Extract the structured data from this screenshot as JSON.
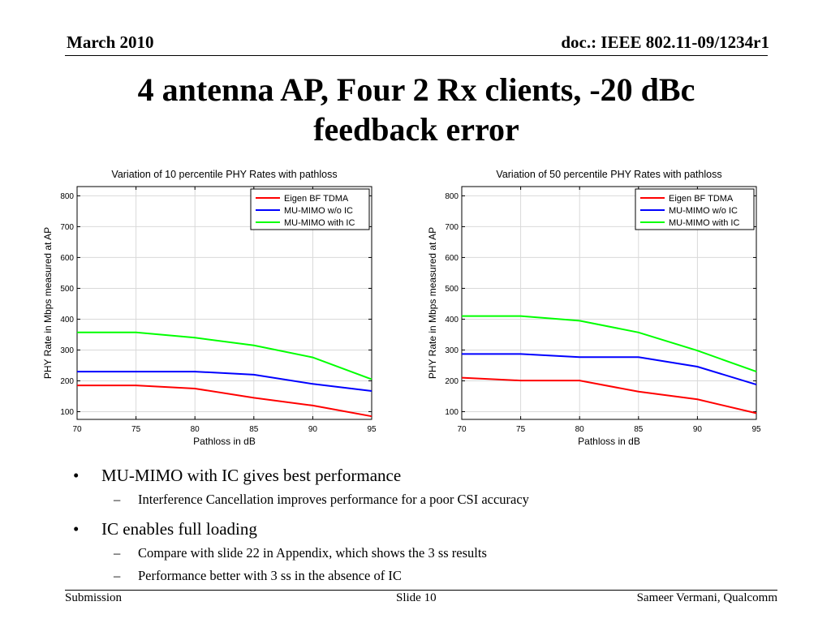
{
  "header": {
    "date": "March 2010",
    "doc_id": "doc.: IEEE 802.11-09/1234r1"
  },
  "title": {
    "line1": "4 antenna AP, Four 2 Rx clients, -20 dBc",
    "line2": "feedback error"
  },
  "colors": {
    "eigen": "#ff0000",
    "mumimo_wo_ic": "#0000ff",
    "mumimo_with_ic": "#00ff00"
  },
  "chart_data": [
    {
      "type": "line",
      "title": "Variation of 10 percentile PHY Rates with pathloss",
      "xlabel": "Pathloss in dB",
      "ylabel": "PHY Rate in Mbps measured at AP",
      "xlim": [
        70,
        95
      ],
      "ylim": [
        75,
        830
      ],
      "x": [
        70,
        75,
        80,
        85,
        90,
        95
      ],
      "x_ticks": [
        "70",
        "75",
        "80",
        "85",
        "90",
        "95"
      ],
      "y_ticks": [
        "100",
        "200",
        "300",
        "400",
        "500",
        "600",
        "700",
        "800"
      ],
      "grid": true,
      "legend_position": "top-right",
      "series": [
        {
          "name": "Eigen BF TDMA",
          "color": "#ff0000",
          "values": [
            185,
            185,
            175,
            145,
            120,
            85
          ]
        },
        {
          "name": "MU-MIMO w/o IC",
          "color": "#0000ff",
          "values": [
            230,
            230,
            230,
            220,
            190,
            167
          ]
        },
        {
          "name": "MU-MIMO with IC",
          "color": "#00ff00",
          "values": [
            357,
            357,
            340,
            315,
            276,
            205
          ]
        }
      ]
    },
    {
      "type": "line",
      "title": "Variation of 50 percentile PHY Rates with pathloss",
      "xlabel": "Pathloss in dB",
      "ylabel": "PHY Rate in Mbps measured at AP",
      "xlim": [
        70,
        95
      ],
      "ylim": [
        75,
        830
      ],
      "x": [
        70,
        75,
        80,
        85,
        90,
        95
      ],
      "x_ticks": [
        "70",
        "75",
        "80",
        "85",
        "90",
        "95"
      ],
      "y_ticks": [
        "100",
        "200",
        "300",
        "400",
        "500",
        "600",
        "700",
        "800"
      ],
      "grid": true,
      "legend_position": "top-right",
      "series": [
        {
          "name": "Eigen BF TDMA",
          "color": "#ff0000",
          "values": [
            210,
            201,
            201,
            165,
            140,
            95
          ]
        },
        {
          "name": "MU-MIMO w/o IC",
          "color": "#0000ff",
          "values": [
            287,
            287,
            277,
            277,
            246,
            188
          ]
        },
        {
          "name": "MU-MIMO with IC",
          "color": "#00ff00",
          "values": [
            410,
            410,
            395,
            357,
            298,
            230
          ]
        }
      ]
    }
  ],
  "bullets": [
    {
      "text": "MU-MIMO with IC gives best performance",
      "subs": [
        "Interference Cancellation improves performance for a poor CSI accuracy"
      ]
    },
    {
      "text": "IC enables full loading",
      "subs": [
        "Compare with slide 22 in Appendix, which shows the 3 ss results",
        "Performance better with 3 ss in the absence of IC"
      ]
    }
  ],
  "bullet_marker": "•",
  "sub_marker": "–",
  "footer": {
    "left": "Submission",
    "center": "Slide 10",
    "right": "Sameer Vermani, Qualcomm"
  }
}
